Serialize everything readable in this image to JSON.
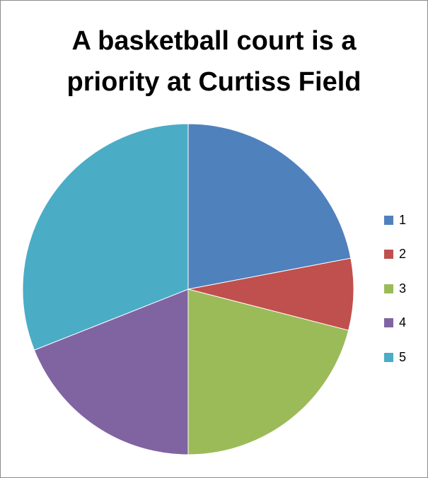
{
  "chart_data": {
    "type": "pie",
    "title_lines": [
      "A basketball court is a",
      "priority at Curtiss Field"
    ],
    "categories": [
      "1",
      "2",
      "3",
      "4",
      "5"
    ],
    "values": [
      22,
      7,
      21,
      19,
      31
    ],
    "colors": [
      "#4f81bd",
      "#c0504d",
      "#9bbb59",
      "#8064a2",
      "#4bacc6"
    ],
    "legend": "right"
  }
}
